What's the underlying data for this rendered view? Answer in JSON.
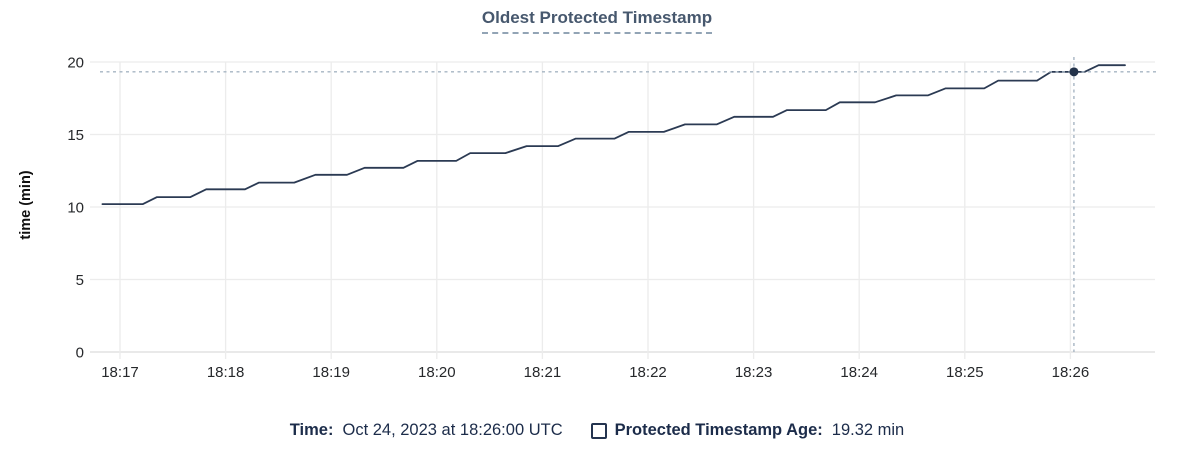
{
  "chart_data": {
    "type": "line",
    "title": "Oldest Protected Timestamp",
    "xlabel": "",
    "ylabel": "time (min)",
    "ylim": [
      0,
      20
    ],
    "yticks": [
      0,
      5,
      10,
      15,
      20
    ],
    "x_unit": "seconds after 18:16:00 UTC",
    "x_range": [
      50,
      631
    ],
    "xticks": [
      {
        "t": 60,
        "label": "18:17"
      },
      {
        "t": 120,
        "label": "18:18"
      },
      {
        "t": 180,
        "label": "18:19"
      },
      {
        "t": 240,
        "label": "18:20"
      },
      {
        "t": 300,
        "label": "18:21"
      },
      {
        "t": 360,
        "label": "18:22"
      },
      {
        "t": 420,
        "label": "18:23"
      },
      {
        "t": 480,
        "label": "18:24"
      },
      {
        "t": 540,
        "label": "18:25"
      },
      {
        "t": 600,
        "label": "18:26"
      }
    ],
    "grid": true,
    "legend_position": "bottom",
    "series": [
      {
        "name": "Protected Timestamp Age",
        "unit": "min",
        "color": "#2b3a53",
        "points": [
          [
            50,
            10.2
          ],
          [
            73,
            10.2
          ],
          [
            81,
            10.68
          ],
          [
            100,
            10.68
          ],
          [
            109,
            11.22
          ],
          [
            131,
            11.22
          ],
          [
            139,
            11.68
          ],
          [
            159,
            11.68
          ],
          [
            171,
            12.22
          ],
          [
            189,
            12.22
          ],
          [
            199,
            12.7
          ],
          [
            221,
            12.7
          ],
          [
            229,
            13.18
          ],
          [
            251,
            13.18
          ],
          [
            259,
            13.72
          ],
          [
            279,
            13.72
          ],
          [
            291,
            14.2
          ],
          [
            309,
            14.2
          ],
          [
            319,
            14.72
          ],
          [
            341,
            14.72
          ],
          [
            349,
            15.18
          ],
          [
            369,
            15.18
          ],
          [
            381,
            15.7
          ],
          [
            399,
            15.7
          ],
          [
            409,
            16.22
          ],
          [
            431,
            16.22
          ],
          [
            439,
            16.68
          ],
          [
            461,
            16.68
          ],
          [
            469,
            17.22
          ],
          [
            489,
            17.22
          ],
          [
            501,
            17.7
          ],
          [
            519,
            17.7
          ],
          [
            529,
            18.18
          ],
          [
            551,
            18.18
          ],
          [
            559,
            18.72
          ],
          [
            581,
            18.72
          ],
          [
            589,
            19.32
          ],
          [
            608,
            19.32
          ],
          [
            616,
            19.78
          ],
          [
            631,
            19.78
          ]
        ]
      }
    ],
    "crosshair": {
      "t": 602,
      "value": 19.32,
      "time": "Oct 24, 2023 at 18:26:00 UTC"
    }
  },
  "legend": {
    "time_label": "Time:",
    "time_value": "Oct 24, 2023 at 18:26:00 UTC",
    "series_label": "Protected Timestamp Age:",
    "series_value": "19.32 min"
  },
  "colors": {
    "line": "#2b3a53",
    "point": "#23324a",
    "grid": "#ececec",
    "zero_line": "#dcdcdc",
    "crosshair": "#a6b5c3",
    "title": "#47586e",
    "title_underline": "#92a4b5",
    "tick_text": "#26282b",
    "legend_text": "#1c2c4a"
  }
}
